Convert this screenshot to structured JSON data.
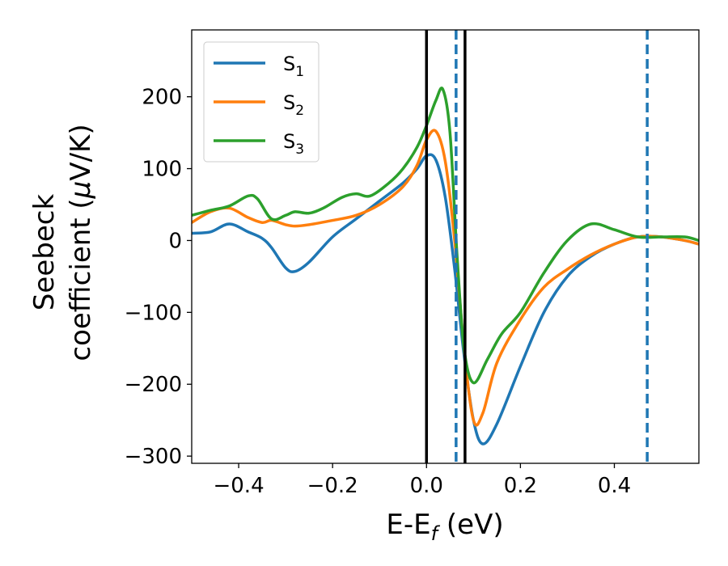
{
  "chart_data": {
    "type": "line",
    "xlabel": "E-E",
    "xlabel_sub": "f",
    "xlabel_unit": " (eV)",
    "ylabel_line1": "Seebeck",
    "ylabel_line2": "coefficient  (",
    "ylabel_mu": "μ",
    "ylabel_unit": "V/K)",
    "xlim": [
      -0.5,
      0.58
    ],
    "ylim": [
      -310,
      293
    ],
    "xticks": [
      -0.4,
      -0.2,
      0.0,
      0.2,
      0.4
    ],
    "xtick_labels": [
      "−0.4",
      "−0.2",
      "0.0",
      "0.2",
      "0.4"
    ],
    "yticks": [
      -300,
      -200,
      -100,
      0,
      100,
      200
    ],
    "ytick_labels": [
      "−300",
      "−200",
      "−100",
      "0",
      "100",
      "200"
    ],
    "grid": false,
    "legend_position": "top-left",
    "vlines": [
      {
        "x": 0.0,
        "color": "#000000",
        "style": "solid"
      },
      {
        "x": 0.082,
        "color": "#000000",
        "style": "solid"
      },
      {
        "x": 0.063,
        "color": "#1f77b4",
        "style": "dashed"
      },
      {
        "x": 0.47,
        "color": "#1f77b4",
        "style": "dashed"
      }
    ],
    "series": [
      {
        "name": "S",
        "name_sub": "1",
        "color": "#1f77b4",
        "x": [
          -0.5,
          -0.46,
          -0.42,
          -0.38,
          -0.35,
          -0.33,
          -0.3,
          -0.28,
          -0.25,
          -0.2,
          -0.15,
          -0.1,
          -0.05,
          -0.02,
          0.0,
          0.02,
          0.04,
          0.06,
          0.08,
          0.1,
          0.12,
          0.15,
          0.2,
          0.25,
          0.3,
          0.35,
          0.4,
          0.45,
          0.5,
          0.55,
          0.58
        ],
        "y": [
          10,
          12,
          23,
          12,
          3,
          -10,
          -38,
          -43,
          -30,
          5,
          30,
          55,
          80,
          100,
          118,
          112,
          60,
          -40,
          -160,
          -250,
          -283,
          -255,
          -175,
          -100,
          -50,
          -22,
          -5,
          5,
          5,
          0,
          -5
        ]
      },
      {
        "name": "S",
        "name_sub": "2",
        "color": "#ff7f0e",
        "x": [
          -0.5,
          -0.46,
          -0.42,
          -0.38,
          -0.35,
          -0.33,
          -0.3,
          -0.28,
          -0.25,
          -0.2,
          -0.15,
          -0.1,
          -0.05,
          -0.02,
          0.0,
          0.02,
          0.04,
          0.06,
          0.08,
          0.1,
          0.12,
          0.15,
          0.2,
          0.25,
          0.3,
          0.35,
          0.4,
          0.45,
          0.5,
          0.55,
          0.58
        ],
        "y": [
          25,
          40,
          45,
          32,
          25,
          28,
          22,
          20,
          22,
          28,
          35,
          50,
          75,
          105,
          140,
          152,
          110,
          0,
          -150,
          -250,
          -240,
          -170,
          -110,
          -65,
          -40,
          -20,
          -5,
          5,
          5,
          0,
          -5
        ]
      },
      {
        "name": "S",
        "name_sub": "3",
        "color": "#2ca02c",
        "x": [
          -0.5,
          -0.46,
          -0.42,
          -0.38,
          -0.36,
          -0.33,
          -0.3,
          -0.28,
          -0.25,
          -0.22,
          -0.18,
          -0.15,
          -0.12,
          -0.08,
          -0.05,
          -0.02,
          0.0,
          0.02,
          0.035,
          0.05,
          0.065,
          0.08,
          0.1,
          0.13,
          0.16,
          0.2,
          0.25,
          0.3,
          0.35,
          0.4,
          0.45,
          0.5,
          0.55,
          0.58
        ],
        "y": [
          35,
          42,
          48,
          62,
          58,
          30,
          35,
          40,
          38,
          45,
          60,
          65,
          62,
          80,
          100,
          130,
          160,
          195,
          210,
          150,
          -20,
          -150,
          -198,
          -165,
          -130,
          -100,
          -45,
          0,
          23,
          15,
          5,
          5,
          5,
          0
        ]
      }
    ]
  }
}
